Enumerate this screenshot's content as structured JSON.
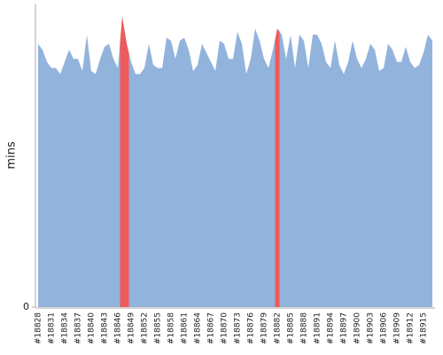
{
  "chart_data": {
    "type": "area",
    "y_label": "mins",
    "categories": [
      "#18828",
      null,
      null,
      "#18831",
      null,
      null,
      "#18834",
      null,
      null,
      "#18837",
      null,
      null,
      "#18840",
      null,
      null,
      "#18843",
      null,
      null,
      "#18846",
      null,
      null,
      "#18849",
      null,
      null,
      "#18852",
      null,
      null,
      "#18855",
      null,
      null,
      "#18858",
      null,
      null,
      "#18861",
      null,
      null,
      "#18864",
      null,
      null,
      "#18867",
      null,
      null,
      "#18870",
      null,
      null,
      "#18873",
      null,
      null,
      "#18876",
      null,
      null,
      "#18879",
      null,
      null,
      "#18882",
      null,
      null,
      "#18885",
      null,
      null,
      "#18888",
      null,
      null,
      "#18891",
      null,
      null,
      "#18894",
      null,
      null,
      "#18897",
      null,
      null,
      "#18900",
      null,
      null,
      "#18903",
      null,
      null,
      "#18906",
      null,
      null,
      "#18909",
      null,
      null,
      "#18912",
      null,
      null,
      "#18915",
      null,
      null
    ],
    "values": [
      87,
      85,
      81,
      79,
      79,
      77,
      81,
      85,
      82,
      82,
      78,
      90,
      78,
      77,
      82,
      86,
      87,
      82,
      79,
      96,
      87,
      81,
      77,
      77,
      79,
      87,
      80,
      79,
      79,
      89,
      88,
      82,
      88,
      89,
      85,
      78,
      80,
      87,
      84,
      81,
      78,
      88,
      87,
      82,
      82,
      91,
      87,
      77,
      82,
      92,
      88,
      82,
      79,
      85,
      92,
      90,
      82,
      90,
      79,
      90,
      88,
      79,
      90,
      90,
      87,
      81,
      79,
      88,
      80,
      77,
      81,
      88,
      82,
      79,
      82,
      87,
      85,
      78,
      79,
      87,
      85,
      81,
      81,
      86,
      81,
      79,
      80,
      84,
      90,
      88
    ],
    "color": "#92b3dc",
    "highlight_color": "#ef5a5a",
    "highlighted": [
      19,
      20,
      54
    ],
    "ylim": [
      0,
      100
    ],
    "yticks": [
      0
    ]
  }
}
